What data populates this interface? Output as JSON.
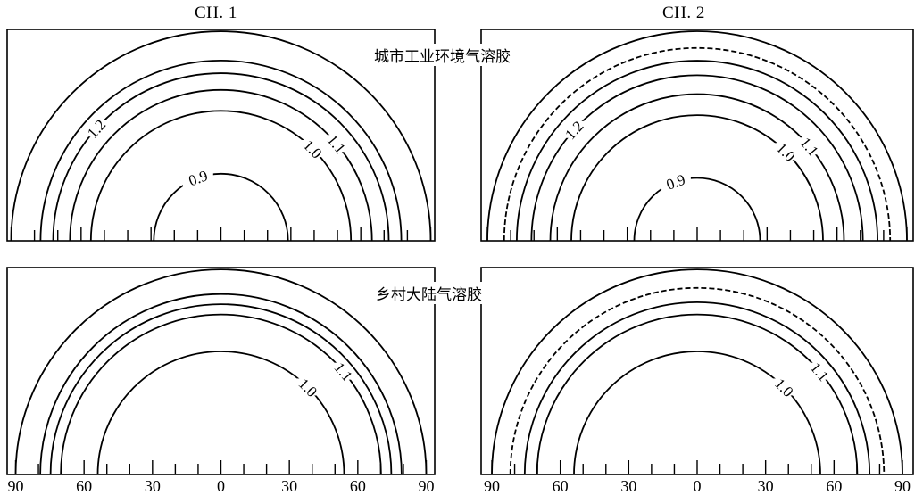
{
  "column_titles": [
    "CH. 1",
    "CH. 2"
  ],
  "row_titles": [
    "城市工业环境气溶胶",
    "乡村大陆气溶胶"
  ],
  "axis_tick_labels": [
    "90",
    "60",
    "30",
    "0",
    "30",
    "60",
    "90"
  ],
  "panels": [
    {
      "id": "urban-ch1",
      "contours": [
        {
          "label": "0.9",
          "radius": 0.32,
          "dashed": false
        },
        {
          "label": "1.0",
          "radius": 0.62,
          "dashed": false
        },
        {
          "label": "1.1",
          "radius": 0.72,
          "dashed": false
        },
        {
          "label": "1.2",
          "radius": 0.8,
          "dashed": false
        },
        {
          "label": "",
          "radius": 0.86,
          "dashed": false
        }
      ]
    },
    {
      "id": "urban-ch2",
      "contours": [
        {
          "label": "0.9",
          "radius": 0.3,
          "dashed": false
        },
        {
          "label": "1.0",
          "radius": 0.6,
          "dashed": false
        },
        {
          "label": "1.1",
          "radius": 0.7,
          "dashed": false
        },
        {
          "label": "1.2",
          "radius": 0.79,
          "dashed": false
        },
        {
          "label": "",
          "radius": 0.86,
          "dashed": false
        },
        {
          "label": "",
          "radius": 0.92,
          "dashed": true
        }
      ]
    },
    {
      "id": "rural-ch1",
      "contours": [
        {
          "label": "1.0",
          "radius": 0.6,
          "dashed": false
        },
        {
          "label": "1.1",
          "radius": 0.78,
          "dashed": false
        },
        {
          "label": "",
          "radius": 0.83,
          "dashed": false
        },
        {
          "label": "",
          "radius": 0.88,
          "dashed": false
        }
      ]
    },
    {
      "id": "rural-ch2",
      "contours": [
        {
          "label": "1.0",
          "radius": 0.6,
          "dashed": false
        },
        {
          "label": "1.1",
          "radius": 0.78,
          "dashed": false
        },
        {
          "label": "",
          "radius": 0.84,
          "dashed": false
        },
        {
          "label": "",
          "radius": 0.91,
          "dashed": true
        }
      ]
    }
  ]
}
